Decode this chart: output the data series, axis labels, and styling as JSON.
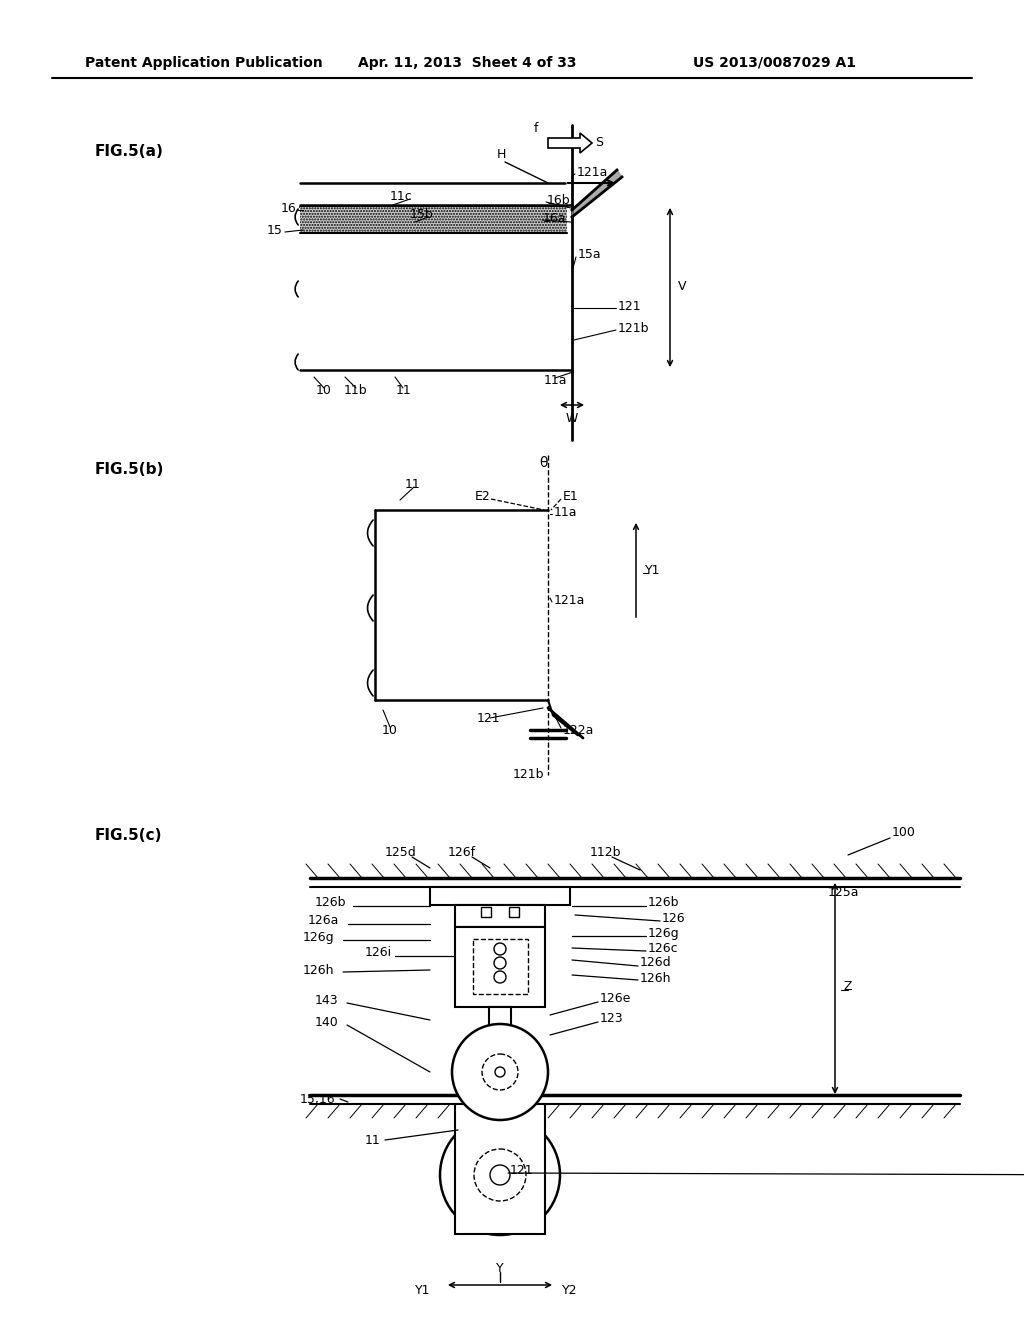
{
  "bg_color": "#ffffff",
  "header_left": "Patent Application Publication",
  "header_mid": "Apr. 11, 2013  Sheet 4 of 33",
  "header_right": "US 2013/0087029 A1"
}
